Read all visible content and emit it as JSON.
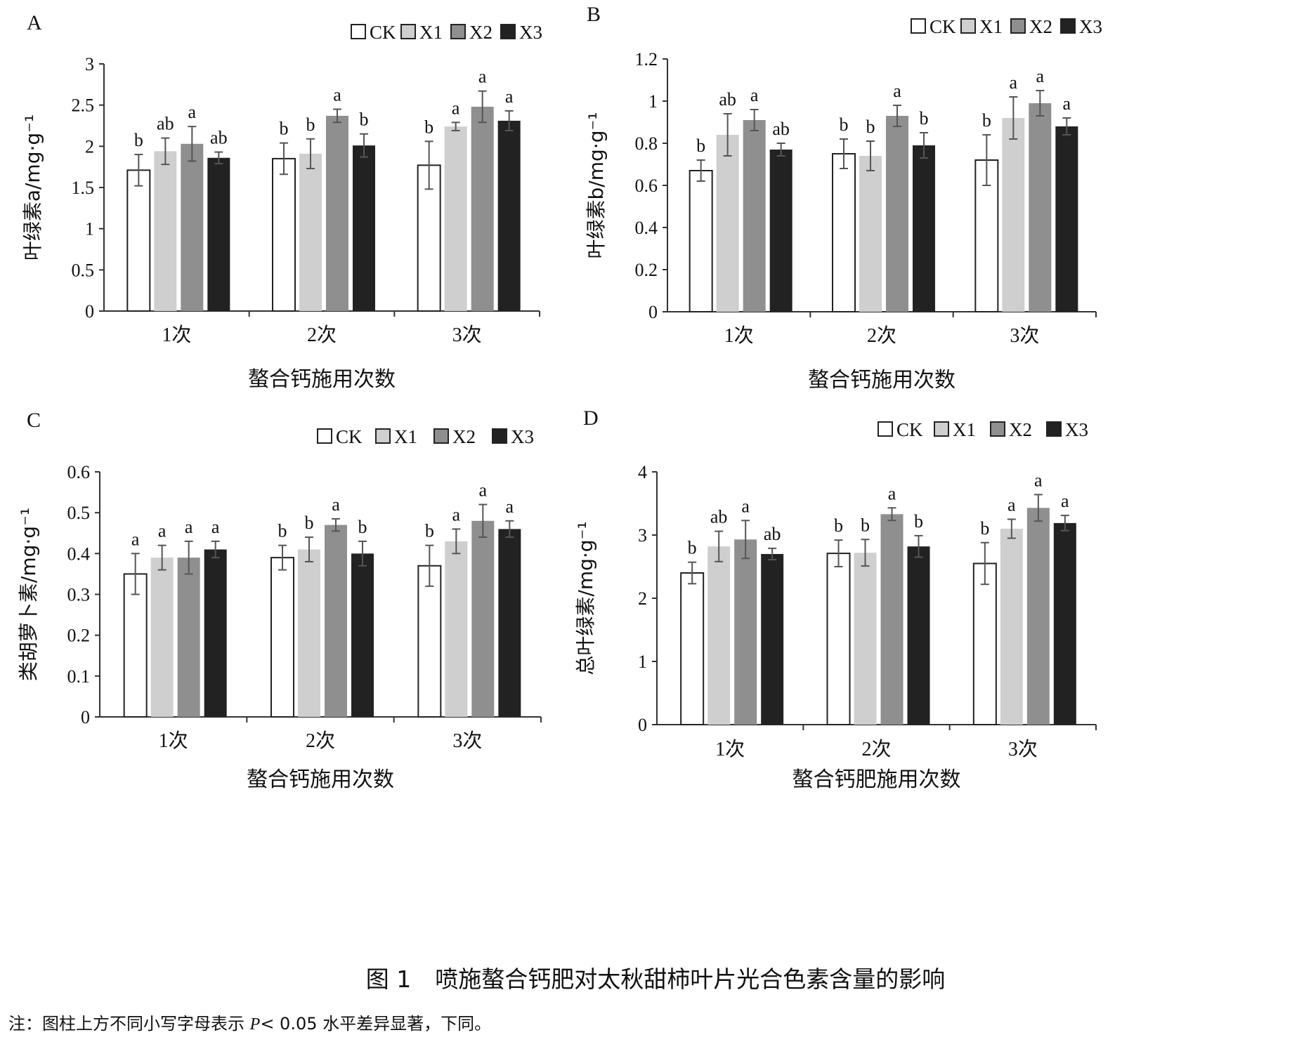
{
  "legend": [
    "CK",
    "X1",
    "X2",
    "X3"
  ],
  "colors": {
    "CK": "#ffffff",
    "X1": "#cfcfcf",
    "X2": "#8f8f8f",
    "X3": "#222222",
    "axis": "#333333",
    "error": "#555555"
  },
  "caption": {
    "number": "图 1",
    "title": "喷施螯合钙肥对太秋甜柿叶片光合色素含量的影响"
  },
  "note": {
    "before": "注：图柱上方不同小写字母表示 ",
    "italic": "P",
    "after": "< 0.05 水平差异显著，下同。"
  },
  "chart_data": [
    {
      "panel": "A",
      "type": "bar",
      "categories": [
        "1次",
        "2次",
        "3次"
      ],
      "xlabel": "螯合钙施用次数",
      "ylabel": "叶绿素a/mg·g⁻¹",
      "ylim": [
        0,
        3
      ],
      "ticks": [
        "0",
        "0.5",
        "1",
        "1.5",
        "2",
        "2.5",
        "3"
      ],
      "series": [
        {
          "name": "CK",
          "values": [
            1.71,
            1.85,
            1.77
          ],
          "errors": [
            0.19,
            0.19,
            0.29
          ],
          "letters": [
            "b",
            "b",
            "b"
          ]
        },
        {
          "name": "X1",
          "values": [
            1.94,
            1.91,
            2.24
          ],
          "errors": [
            0.16,
            0.18,
            0.05
          ],
          "letters": [
            "ab",
            "b",
            "a"
          ]
        },
        {
          "name": "X2",
          "values": [
            2.03,
            2.37,
            2.48
          ],
          "errors": [
            0.21,
            0.08,
            0.19
          ],
          "letters": [
            "a",
            "a",
            "a"
          ]
        },
        {
          "name": "X3",
          "values": [
            1.86,
            2.01,
            2.31
          ],
          "errors": [
            0.07,
            0.14,
            0.12
          ],
          "letters": [
            "ab",
            "b",
            "a"
          ]
        }
      ]
    },
    {
      "panel": "B",
      "type": "bar",
      "categories": [
        "1次",
        "2次",
        "3次"
      ],
      "xlabel": "螯合钙施用次数",
      "ylabel": "叶绿素b/mg·g⁻¹",
      "ylim": [
        0,
        1.2
      ],
      "ticks": [
        "0",
        "0.2",
        "0.4",
        "0.6",
        "0.8",
        "1",
        "1.2"
      ],
      "series": [
        {
          "name": "CK",
          "values": [
            0.67,
            0.75,
            0.72
          ],
          "errors": [
            0.05,
            0.07,
            0.12
          ],
          "letters": [
            "b",
            "b",
            "b"
          ]
        },
        {
          "name": "X1",
          "values": [
            0.84,
            0.74,
            0.92
          ],
          "errors": [
            0.1,
            0.07,
            0.1
          ],
          "letters": [
            "ab",
            "b",
            "a"
          ]
        },
        {
          "name": "X2",
          "values": [
            0.91,
            0.93,
            0.99
          ],
          "errors": [
            0.05,
            0.05,
            0.06
          ],
          "letters": [
            "a",
            "a",
            "a"
          ]
        },
        {
          "name": "X3",
          "values": [
            0.77,
            0.79,
            0.88
          ],
          "errors": [
            0.03,
            0.06,
            0.04
          ],
          "letters": [
            "ab",
            "b",
            "a"
          ]
        }
      ]
    },
    {
      "panel": "C",
      "type": "bar",
      "categories": [
        "1次",
        "2次",
        "3次"
      ],
      "xlabel": "螯合钙施用次数",
      "ylabel": "类胡萝卜素/mg·g⁻¹",
      "ylim": [
        0,
        0.6
      ],
      "ticks": [
        "0",
        "0.1",
        "0.2",
        "0.3",
        "0.4",
        "0.5",
        "0.6"
      ],
      "series": [
        {
          "name": "CK",
          "values": [
            0.35,
            0.39,
            0.37
          ],
          "errors": [
            0.05,
            0.03,
            0.05
          ],
          "letters": [
            "a",
            "b",
            "b"
          ]
        },
        {
          "name": "X1",
          "values": [
            0.39,
            0.41,
            0.43
          ],
          "errors": [
            0.03,
            0.03,
            0.03
          ],
          "letters": [
            "a",
            "b",
            "a"
          ]
        },
        {
          "name": "X2",
          "values": [
            0.39,
            0.47,
            0.48
          ],
          "errors": [
            0.04,
            0.015,
            0.04
          ],
          "letters": [
            "a",
            "a",
            "a"
          ]
        },
        {
          "name": "X3",
          "values": [
            0.41,
            0.4,
            0.46
          ],
          "errors": [
            0.02,
            0.03,
            0.02
          ],
          "letters": [
            "a",
            "b",
            "a"
          ]
        }
      ]
    },
    {
      "panel": "D",
      "type": "bar",
      "categories": [
        "1次",
        "2次",
        "3次"
      ],
      "xlabel": "螯合钙肥施用次数",
      "ylabel": "总叶绿素/mg·g⁻¹",
      "ylim": [
        0,
        4
      ],
      "ticks": [
        "0",
        "1",
        "2",
        "3",
        "4"
      ],
      "series": [
        {
          "name": "CK",
          "values": [
            2.4,
            2.71,
            2.55
          ],
          "errors": [
            0.17,
            0.21,
            0.33
          ],
          "letters": [
            "b",
            "b",
            "b"
          ]
        },
        {
          "name": "X1",
          "values": [
            2.82,
            2.72,
            3.1
          ],
          "errors": [
            0.24,
            0.21,
            0.15
          ],
          "letters": [
            "ab",
            "b",
            "a"
          ]
        },
        {
          "name": "X2",
          "values": [
            2.93,
            3.33,
            3.43
          ],
          "errors": [
            0.3,
            0.1,
            0.21
          ],
          "letters": [
            "a",
            "a",
            "a"
          ]
        },
        {
          "name": "X3",
          "values": [
            2.7,
            2.82,
            3.19
          ],
          "errors": [
            0.09,
            0.17,
            0.12
          ],
          "letters": [
            "ab",
            "b",
            "a"
          ]
        }
      ]
    }
  ]
}
